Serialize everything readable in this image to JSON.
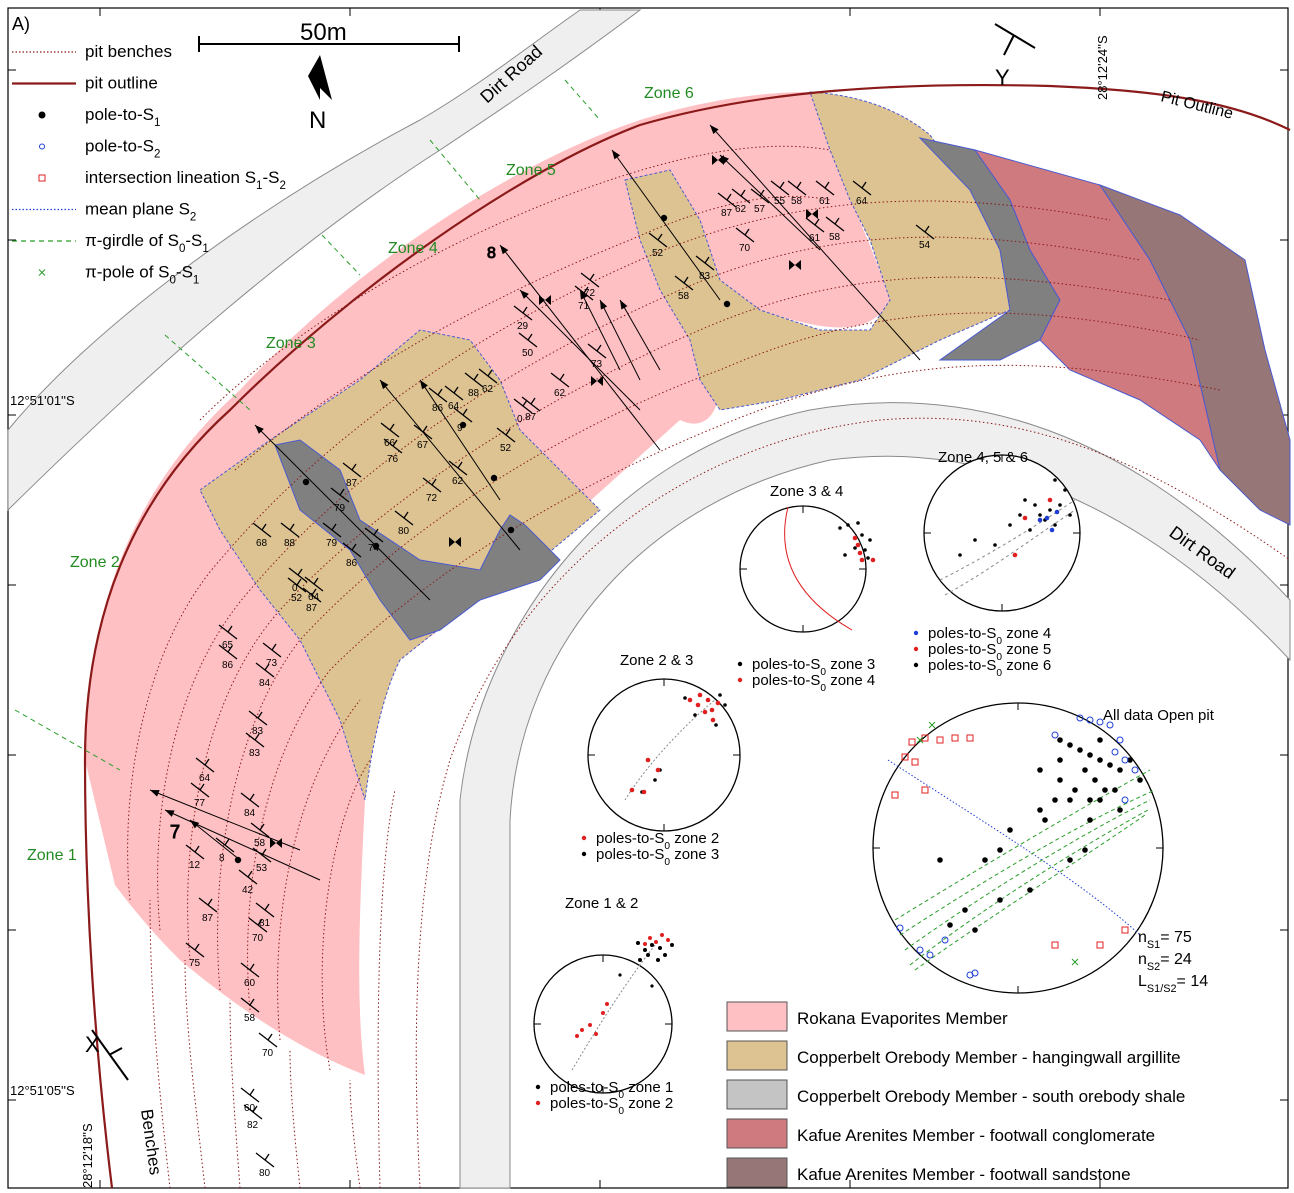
{
  "panel_label": "A)",
  "scale_label": "50m",
  "north_label": "N",
  "section_label_y": "Y",
  "section_label_x": "X",
  "coord_top": "28°12'24''S",
  "coord_left_1": "12°51'01''S",
  "coord_left_2": "12°51'05''S",
  "coord_bottom": "28°12'18''S",
  "map_labels": {
    "dirt_road_1": "Dirt Road",
    "dirt_road_2": "Dirt Road",
    "pit_outline": "Pit Outline",
    "benches": "Benches"
  },
  "zones": [
    "Zone 1",
    "Zone 2",
    "Zone 3",
    "Zone 4",
    "Zone 5",
    "Zone 6"
  ],
  "symbol_legend": [
    {
      "label": "pit benches",
      "symbol": "dotted-line",
      "color": "#8b1a1a"
    },
    {
      "label": "pit outline",
      "symbol": "solid-line",
      "color": "#8b1a1a"
    },
    {
      "label": "pole-to-S",
      "sub": "1",
      "symbol": "filled-dot",
      "color": "#000000"
    },
    {
      "label": "pole-to-S",
      "sub": "2",
      "symbol": "open-circle",
      "color": "#1f3fd4"
    },
    {
      "label": "intersection lineation S",
      "sub": "1",
      "mid": "-S",
      "sub2": "2",
      "symbol": "open-square",
      "color": "#e02020"
    },
    {
      "label": "mean plane S",
      "sub": "2",
      "symbol": "dotted-line",
      "color": "#1f3fd4"
    },
    {
      "label": "π-girdle of S",
      "sub": "0",
      "mid": "-S",
      "sub2": "1",
      "symbol": "dashed-line",
      "color": "#2a9d2a"
    },
    {
      "label": "π-pole of S",
      "sub": "0",
      "mid": "-S",
      "sub2": "1",
      "symbol": "cross",
      "color": "#2a9d2a"
    }
  ],
  "unit_legend": [
    {
      "label": "Rokana Evaporites Member",
      "color": "#ffc0c4"
    },
    {
      "label": "Copperbelt Orebody Member - hangingwall argillite",
      "color": "#ddc392"
    },
    {
      "label": "Copperbelt Orebody Member - south orebody shale",
      "color": "#c4c4c4"
    },
    {
      "label": "Kafue Arenites Member - footwall conglomerate",
      "color": "#cf7a7e"
    },
    {
      "label": "Kafue Arenites Member - footwall sandstone",
      "color": "#967676"
    }
  ],
  "stereonets": {
    "zone12": {
      "title": "Zone 1 & 2",
      "legend": [
        {
          "label": "poles-to-S",
          "sub": "0",
          "tail": " zone 1",
          "color": "#000000"
        },
        {
          "label": "poles-to-S",
          "sub": "0",
          "tail": " zone 2",
          "color": "#e02020"
        }
      ]
    },
    "zone23": {
      "title": "Zone 2 & 3",
      "legend": [
        {
          "label": "poles-to-S",
          "sub": "0",
          "tail": " zone 2",
          "color": "#e02020"
        },
        {
          "label": "poles-to-S",
          "sub": "0",
          "tail": " zone 3",
          "color": "#000000"
        }
      ]
    },
    "zone34": {
      "title": "Zone 3 & 4",
      "legend": [
        {
          "label": "poles-to-S",
          "sub": "0",
          "tail": " zone 3",
          "color": "#000000"
        },
        {
          "label": "poles-to-S",
          "sub": "0",
          "tail": " zone 4",
          "color": "#e02020"
        }
      ]
    },
    "zone456": {
      "title": "Zone 4, 5 & 6",
      "legend": [
        {
          "label": "poles-to-S",
          "sub": "0",
          "tail": " zone 4",
          "color": "#1f3fd4"
        },
        {
          "label": "poles-to-S",
          "sub": "0",
          "tail": " zone 5",
          "color": "#e02020"
        },
        {
          "label": "poles-to-S",
          "sub": "0",
          "tail": " zone 6",
          "color": "#000000"
        }
      ]
    },
    "all": {
      "title": "All data Open pit",
      "stats": [
        {
          "n": "n",
          "sub": "S1",
          "val": "= 75"
        },
        {
          "n": "n",
          "sub": "S2",
          "val": "= 24"
        },
        {
          "n": "L",
          "sub": "S1/S2",
          "val": "= 14"
        }
      ]
    }
  },
  "dip_values": [
    "65",
    "86",
    "73",
    "84",
    "83",
    "83",
    "64",
    "77",
    "8",
    "84",
    "58",
    "53",
    "42",
    "12",
    "87",
    "81",
    "70",
    "75",
    "60",
    "58",
    "60",
    "82",
    "80",
    "70",
    "68",
    "88",
    "79",
    "79",
    "87",
    "52",
    "80",
    "74",
    "86",
    "64",
    "0",
    "87",
    "66",
    "76",
    "67",
    "86",
    "9",
    "64",
    "88",
    "62",
    "62",
    "72",
    "52",
    "29",
    "50",
    "62",
    "0",
    "87",
    "72",
    "71",
    "73",
    "52",
    "83",
    "58",
    "87",
    "62",
    "57",
    "55",
    "58",
    "61",
    "64",
    "70",
    "61",
    "58",
    "54"
  ],
  "fold_labels": [
    "7",
    "8"
  ]
}
